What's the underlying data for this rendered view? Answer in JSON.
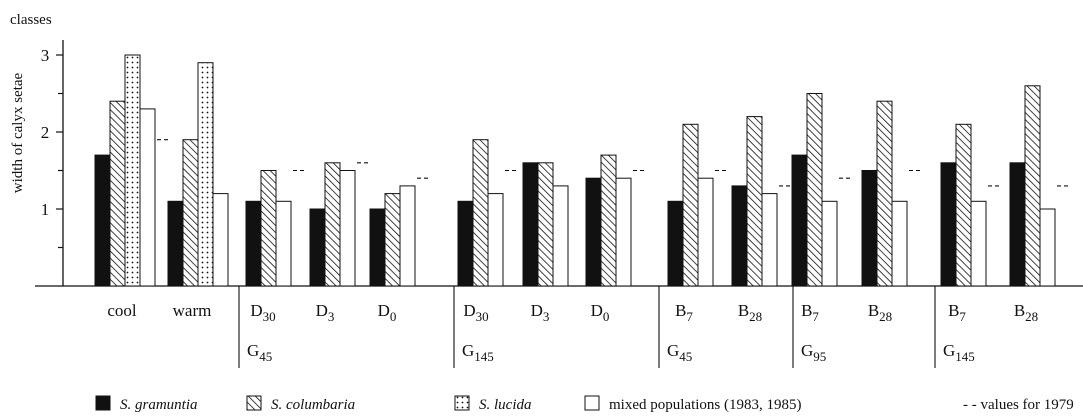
{
  "chart_data": {
    "type": "bar",
    "ylabel": "width of calyx setae",
    "yunit": "classes",
    "ylim": [
      0,
      3
    ],
    "yticks": [
      "1",
      "2",
      "3"
    ],
    "legend_position": "bottom",
    "groups": [
      {
        "label": "cool",
        "sub": "",
        "values": {
          "gramuntia": 1.7,
          "columbaria": 2.4,
          "lucida": 3.0,
          "mixed": 2.3
        },
        "ref": 1.9
      },
      {
        "label": "warm",
        "sub": "",
        "values": {
          "gramuntia": 1.1,
          "columbaria": 1.9,
          "lucida": 2.9,
          "mixed": 1.2
        },
        "ref": null
      },
      {
        "label": "D",
        "sub": "30",
        "values": {
          "gramuntia": 1.1,
          "columbaria": 1.5,
          "lucida": null,
          "mixed": 1.1
        },
        "ref": 1.5
      },
      {
        "label": "D",
        "sub": "3",
        "values": {
          "gramuntia": 1.0,
          "columbaria": 1.6,
          "lucida": null,
          "mixed": 1.5
        },
        "ref": 1.6
      },
      {
        "label": "D",
        "sub": "0",
        "values": {
          "gramuntia": 1.0,
          "columbaria": 1.2,
          "lucida": null,
          "mixed": 1.3
        },
        "ref": 1.4
      },
      {
        "label": "D",
        "sub": "30",
        "values": {
          "gramuntia": 1.1,
          "columbaria": 1.9,
          "lucida": null,
          "mixed": 1.2
        },
        "ref": 1.5
      },
      {
        "label": "D",
        "sub": "3",
        "values": {
          "gramuntia": 1.6,
          "columbaria": 1.6,
          "lucida": null,
          "mixed": 1.3
        },
        "ref": null
      },
      {
        "label": "D",
        "sub": "0",
        "values": {
          "gramuntia": 1.4,
          "columbaria": 1.7,
          "lucida": null,
          "mixed": 1.4
        },
        "ref": 1.5
      },
      {
        "label": "B",
        "sub": "7",
        "values": {
          "gramuntia": 1.1,
          "columbaria": 2.1,
          "lucida": null,
          "mixed": 1.4
        },
        "ref": 1.5
      },
      {
        "label": "B",
        "sub": "28",
        "values": {
          "gramuntia": 1.3,
          "columbaria": 2.2,
          "lucida": null,
          "mixed": 1.2
        },
        "ref": 1.3
      },
      {
        "label": "B",
        "sub": "7",
        "values": {
          "gramuntia": 1.7,
          "columbaria": 2.5,
          "lucida": null,
          "mixed": 1.1
        },
        "ref": 1.4
      },
      {
        "label": "B",
        "sub": "28",
        "values": {
          "gramuntia": 1.5,
          "columbaria": 2.4,
          "lucida": null,
          "mixed": 1.1
        },
        "ref": 1.5
      },
      {
        "label": "B",
        "sub": "7",
        "values": {
          "gramuntia": 1.6,
          "columbaria": 2.1,
          "lucida": null,
          "mixed": 1.1
        },
        "ref": 1.3
      },
      {
        "label": "B",
        "sub": "28",
        "values": {
          "gramuntia": 1.6,
          "columbaria": 2.6,
          "lucida": null,
          "mixed": 1.0
        },
        "ref": 1.3
      }
    ],
    "supergroups": [
      {
        "label": "G",
        "sub": "45",
        "from": 2,
        "to": 4
      },
      {
        "label": "G",
        "sub": "145",
        "from": 5,
        "to": 7
      },
      {
        "label": "G",
        "sub": "45",
        "from": 8,
        "to": 9
      },
      {
        "label": "G",
        "sub": "95",
        "from": 10,
        "to": 11
      },
      {
        "label": "G",
        "sub": "145",
        "from": 12,
        "to": 13
      }
    ],
    "series": [
      {
        "key": "gramuntia",
        "name": "S. gramuntia",
        "pattern": "solid",
        "italic": true
      },
      {
        "key": "columbaria",
        "name": "S. columbaria",
        "pattern": "hatch",
        "italic": true
      },
      {
        "key": "lucida",
        "name": "S. lucida",
        "pattern": "dots",
        "italic": true
      },
      {
        "key": "mixed",
        "name": "mixed populations (1983, 1985)",
        "pattern": "white",
        "italic": false
      }
    ],
    "reference_legend": "- - values for 1979"
  }
}
